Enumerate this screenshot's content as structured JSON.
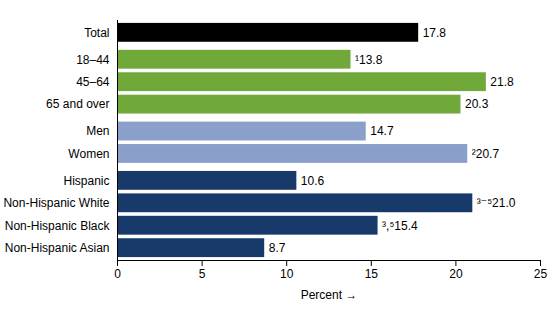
{
  "chart_data": {
    "type": "bar",
    "orientation": "horizontal",
    "categories": [
      "Total",
      "18–44",
      "45–64",
      "65 and over",
      "Men",
      "Women",
      "Hispanic",
      "Non-Hispanic White",
      "Non-Hispanic Black",
      "Non-Hispanic Asian"
    ],
    "values": [
      17.8,
      13.8,
      21.8,
      20.3,
      14.7,
      20.7,
      10.6,
      21.0,
      15.4,
      8.7
    ],
    "value_labels": [
      "17.8",
      "¹13.8",
      "21.8",
      "20.3",
      "14.7",
      "²20.7",
      "10.6",
      "³⁻⁵21.0",
      "³,⁵15.4",
      "8.7"
    ],
    "colors": [
      "#000000",
      "#70a83a",
      "#70a83a",
      "#70a83a",
      "#8a9fc9",
      "#8a9fc9",
      "#173a6b",
      "#173a6b",
      "#173a6b",
      "#173a6b"
    ],
    "xlabel": "Percent",
    "xlim": [
      0,
      25
    ],
    "xticks": [
      0,
      5,
      10,
      15,
      20,
      25
    ],
    "data_labels": true,
    "grid": false
  }
}
